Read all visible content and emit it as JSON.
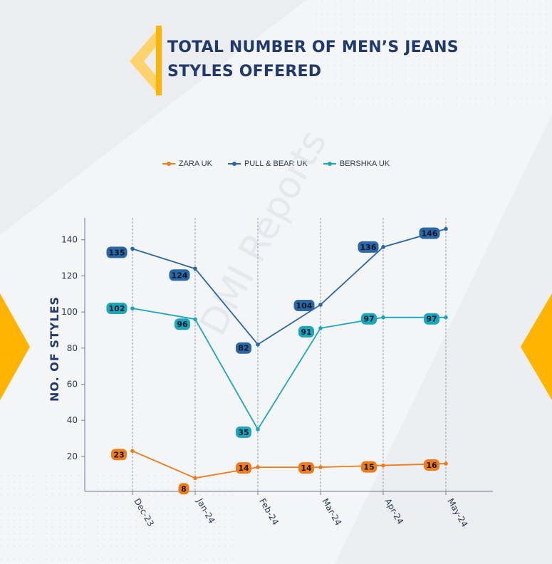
{
  "title_lines": [
    "TOTAL NUMBER OF MEN’S JEANS",
    "STYLES OFFERED"
  ],
  "watermark": "DMI Reports",
  "colors": {
    "accent": "#ffb400",
    "title": "#1f3a6b",
    "axis": "#2b3a55"
  },
  "chart_data": {
    "type": "line",
    "categories": [
      "Dec-23",
      "Jan-24",
      "Feb-24",
      "Mar-24",
      "Apr-24",
      "May-24"
    ],
    "ylabel": "NO. OF STYLES",
    "xlabel": "",
    "ylim": [
      0,
      150
    ],
    "yticks": [
      20,
      40,
      60,
      80,
      100,
      120,
      140
    ],
    "vertical_gridlines": true,
    "legend_position": "top-center",
    "series": [
      {
        "name": "ZARA UK",
        "color": "#f07b1a",
        "values": [
          23,
          8,
          14,
          14,
          15,
          16
        ],
        "labels": [
          "23",
          "8",
          "14",
          "14",
          "15",
          "16"
        ]
      },
      {
        "name": "PULL & BEAR UK",
        "color": "#2967a6",
        "values": [
          135,
          124,
          82,
          104,
          136,
          146
        ],
        "labels": [
          "135",
          "124",
          "82",
          "104",
          "136",
          "146"
        ]
      },
      {
        "name": "BERSHKA UK",
        "color": "#1aa7bd",
        "values": [
          102,
          96,
          35,
          91,
          97,
          97
        ],
        "labels": [
          "102",
          "96",
          "35",
          "91",
          "97",
          "97"
        ]
      }
    ]
  }
}
